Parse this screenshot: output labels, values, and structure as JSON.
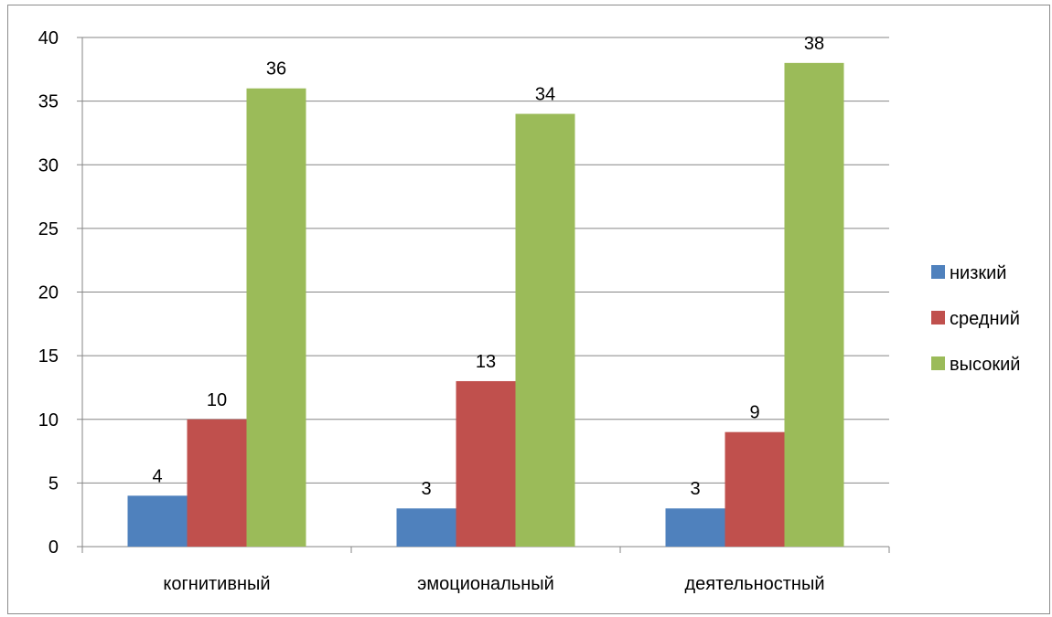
{
  "chart_data": {
    "type": "bar",
    "title": "",
    "xlabel": "",
    "ylabel": "",
    "categories": [
      "когнитивный",
      "эмоциональный",
      "деятельностный"
    ],
    "series": [
      {
        "name": "низкий",
        "values": [
          4,
          3,
          3
        ],
        "color": "#4F81BD"
      },
      {
        "name": "средний",
        "values": [
          10,
          13,
          9
        ],
        "color": "#C0504D"
      },
      {
        "name": "высокий",
        "values": [
          36,
          34,
          38
        ],
        "color": "#9BBB59"
      }
    ],
    "ylim": [
      0,
      40
    ],
    "yticks": [
      0,
      5,
      10,
      15,
      20,
      25,
      30,
      35,
      40
    ],
    "grid": true,
    "gridline_color": "#868686",
    "data_labels": true,
    "legend_position": "right"
  }
}
